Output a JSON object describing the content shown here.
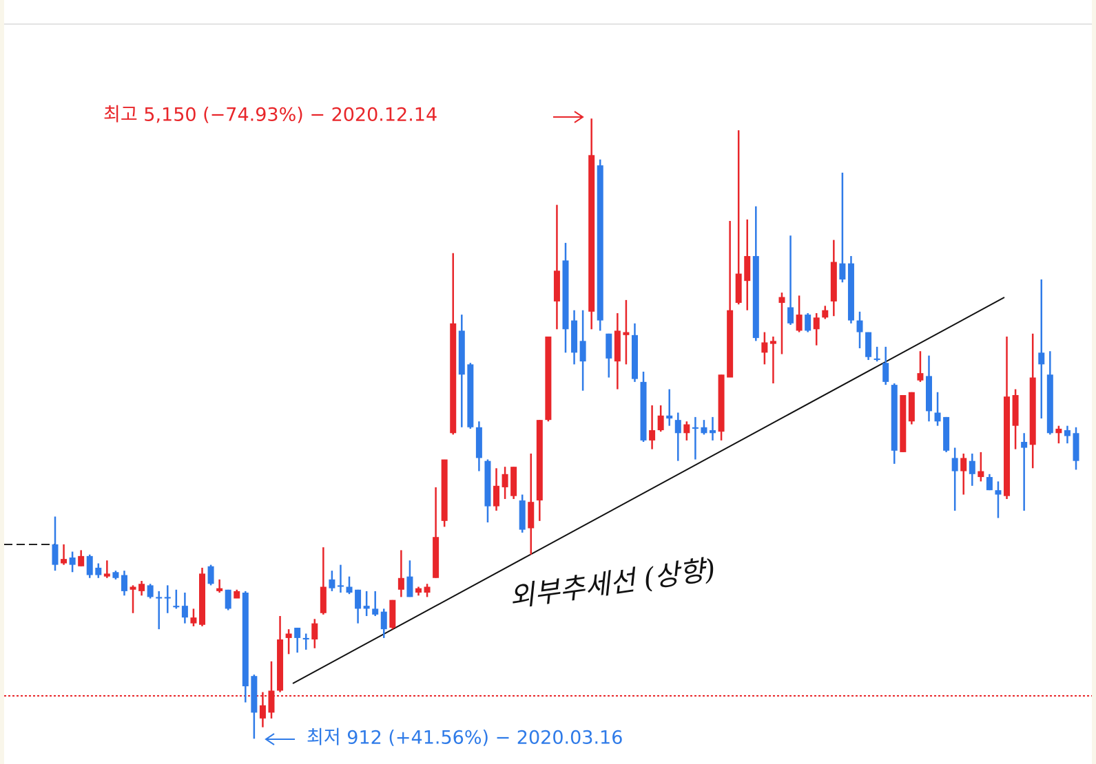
{
  "chart_data": {
    "type": "candlestick",
    "up_color": "#e8262a",
    "down_color": "#2f7be8",
    "ylim": [
      800,
      5800
    ],
    "annotations": [
      {
        "text": "최고 5,150 (−74.93%) − 2020.12.14",
        "color": "#e8262a"
      },
      {
        "text": "최저 912 (+41.56%) − 2020.03.16",
        "color": "#2f7be8"
      },
      {
        "text": "외부추세선 (상향)",
        "color": "#111111"
      }
    ],
    "ohlc": [
      [
        2240,
        2430,
        2060,
        2100
      ],
      [
        2110,
        2240,
        2100,
        2140
      ],
      [
        2150,
        2190,
        2050,
        2100
      ],
      [
        2090,
        2200,
        2090,
        2160
      ],
      [
        2160,
        2170,
        2010,
        2030
      ],
      [
        2080,
        2110,
        2010,
        2030
      ],
      [
        2020,
        2130,
        2010,
        2040
      ],
      [
        2050,
        2060,
        2000,
        2010
      ],
      [
        2030,
        2060,
        1890,
        1920
      ],
      [
        1930,
        1960,
        1770,
        1950
      ],
      [
        1920,
        1990,
        1890,
        1970
      ],
      [
        1960,
        1970,
        1870,
        1880
      ],
      [
        1880,
        1920,
        1660,
        1870
      ],
      [
        1880,
        1960,
        1770,
        1870
      ],
      [
        1820,
        1930,
        1800,
        1810
      ],
      [
        1820,
        1910,
        1700,
        1740
      ],
      [
        1700,
        1800,
        1680,
        1740
      ],
      [
        1690,
        2080,
        1680,
        2040
      ],
      [
        2090,
        2100,
        1960,
        1970
      ],
      [
        1920,
        2000,
        1910,
        1940
      ],
      [
        1930,
        1930,
        1790,
        1800
      ],
      [
        1870,
        1930,
        1870,
        1920
      ],
      [
        1910,
        1920,
        1160,
        1270
      ],
      [
        1340,
        1350,
        912,
        1090
      ],
      [
        1050,
        1230,
        990,
        1140
      ],
      [
        1090,
        1440,
        1050,
        1240
      ],
      [
        1240,
        1750,
        1230,
        1590
      ],
      [
        1600,
        1660,
        1490,
        1630
      ],
      [
        1670,
        1670,
        1500,
        1600
      ],
      [
        1600,
        1630,
        1520,
        1590
      ],
      [
        1590,
        1730,
        1530,
        1700
      ],
      [
        1770,
        2220,
        1760,
        1950
      ],
      [
        2000,
        2060,
        1920,
        1940
      ],
      [
        1960,
        2100,
        1910,
        1950
      ],
      [
        1950,
        2020,
        1900,
        1910
      ],
      [
        1930,
        1930,
        1700,
        1800
      ],
      [
        1820,
        1920,
        1750,
        1800
      ],
      [
        1800,
        1920,
        1750,
        1760
      ],
      [
        1780,
        1800,
        1600,
        1660
      ],
      [
        1670,
        1860,
        1660,
        1860
      ],
      [
        1930,
        2200,
        1880,
        2010
      ],
      [
        2020,
        2130,
        1880,
        1880
      ],
      [
        1910,
        1950,
        1890,
        1940
      ],
      [
        1910,
        1970,
        1880,
        1950
      ],
      [
        2010,
        2630,
        2010,
        2290
      ],
      [
        2400,
        2820,
        2360,
        2820
      ],
      [
        3000,
        4230,
        2990,
        3750
      ],
      [
        3700,
        3810,
        3040,
        3400
      ],
      [
        3470,
        3480,
        3030,
        3040
      ],
      [
        3040,
        3080,
        2740,
        2830
      ],
      [
        2810,
        2820,
        2390,
        2500
      ],
      [
        2500,
        2760,
        2470,
        2640
      ],
      [
        2630,
        2770,
        2550,
        2720
      ],
      [
        2570,
        2770,
        2550,
        2770
      ],
      [
        2540,
        2580,
        2320,
        2340
      ],
      [
        2350,
        2860,
        2170,
        2530
      ],
      [
        2540,
        3090,
        2400,
        3090
      ],
      [
        3090,
        3660,
        3080,
        3660
      ],
      [
        3900,
        4560,
        3710,
        4110
      ],
      [
        4180,
        4300,
        3550,
        3710
      ],
      [
        3770,
        3840,
        3470,
        3550
      ],
      [
        3630,
        3840,
        3290,
        3490
      ],
      [
        3830,
        5150,
        3710,
        4900
      ],
      [
        4830,
        4870,
        3700,
        3770
      ],
      [
        3680,
        3680,
        3380,
        3510
      ],
      [
        3490,
        3820,
        3300,
        3700
      ],
      [
        3670,
        3910,
        3470,
        3690
      ],
      [
        3670,
        3750,
        3350,
        3370
      ],
      [
        3350,
        3420,
        2940,
        2950
      ],
      [
        2950,
        3190,
        2890,
        3020
      ],
      [
        3020,
        3190,
        3010,
        3120
      ],
      [
        3120,
        3300,
        3050,
        3100
      ],
      [
        3090,
        3140,
        2810,
        3000
      ],
      [
        3000,
        3080,
        2950,
        3060
      ],
      [
        3040,
        3110,
        2820,
        3030
      ],
      [
        3040,
        3090,
        2990,
        3000
      ],
      [
        3020,
        3110,
        2950,
        3000
      ],
      [
        3010,
        3400,
        2950,
        3400
      ],
      [
        3380,
        4450,
        3380,
        3840
      ],
      [
        3890,
        5070,
        3880,
        4090
      ],
      [
        4040,
        4460,
        3840,
        4210
      ],
      [
        4210,
        4550,
        3630,
        3650
      ],
      [
        3550,
        3690,
        3470,
        3620
      ],
      [
        3610,
        3660,
        3340,
        3630
      ],
      [
        3890,
        3960,
        3540,
        3930
      ],
      [
        3860,
        4350,
        3740,
        3750
      ],
      [
        3700,
        3940,
        3690,
        3810
      ],
      [
        3810,
        3820,
        3690,
        3700
      ],
      [
        3710,
        3820,
        3600,
        3790
      ],
      [
        3790,
        3870,
        3780,
        3840
      ],
      [
        3900,
        4320,
        3800,
        4170
      ],
      [
        4160,
        4780,
        4030,
        4050
      ],
      [
        4160,
        4210,
        3750,
        3770
      ],
      [
        3770,
        3830,
        3580,
        3690
      ],
      [
        3690,
        3690,
        3500,
        3520
      ],
      [
        3510,
        3590,
        3490,
        3500
      ],
      [
        3480,
        3590,
        3330,
        3350
      ],
      [
        3330,
        3340,
        2790,
        2880
      ],
      [
        2870,
        3260,
        2870,
        3260
      ],
      [
        3080,
        3280,
        3060,
        3280
      ],
      [
        3360,
        3560,
        3350,
        3410
      ],
      [
        3390,
        3530,
        3080,
        3150
      ],
      [
        3140,
        3280,
        3050,
        3080
      ],
      [
        3110,
        3110,
        2870,
        2880
      ],
      [
        2830,
        2900,
        2470,
        2740
      ],
      [
        2740,
        2860,
        2580,
        2830
      ],
      [
        2810,
        2860,
        2640,
        2720
      ],
      [
        2700,
        2870,
        2670,
        2740
      ],
      [
        2700,
        2720,
        2610,
        2610
      ],
      [
        2610,
        2670,
        2420,
        2580
      ],
      [
        2570,
        3660,
        2550,
        3250
      ],
      [
        3050,
        3300,
        2890,
        3260
      ],
      [
        2940,
        3000,
        2470,
        2900
      ],
      [
        2920,
        3680,
        2760,
        3380
      ],
      [
        3550,
        4050,
        3100,
        3470
      ],
      [
        3400,
        3560,
        2990,
        3000
      ],
      [
        3000,
        3050,
        2930,
        3030
      ],
      [
        3020,
        3050,
        2930,
        2980
      ],
      [
        3000,
        3040,
        2750,
        2810
      ]
    ]
  }
}
